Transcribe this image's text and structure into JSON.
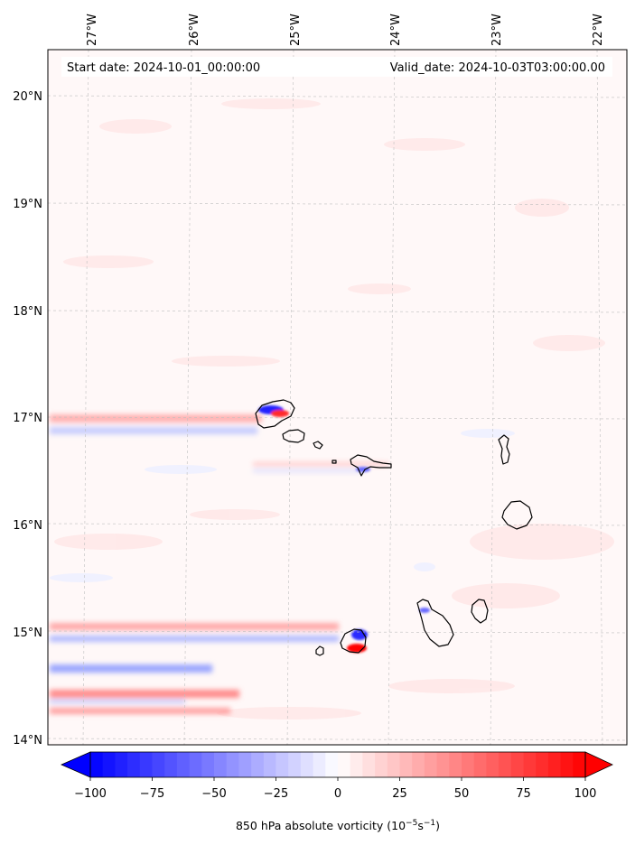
{
  "map": {
    "start_date": "Start date: 2024-10-01_00:00:00",
    "valid_date": "Valid_date: 2024-10-03T03:00:00.00",
    "lon_labels": [
      "27°W",
      "26°W",
      "25°W",
      "24°W",
      "23°W",
      "22°W"
    ],
    "lat_labels": [
      "20°N",
      "19°N",
      "18°N",
      "17°N",
      "16°N",
      "15°N",
      "14°N"
    ],
    "lon_values": [
      -27,
      -26,
      -25,
      -24,
      -23,
      -22
    ],
    "lat_values": [
      20,
      19,
      18,
      17,
      16,
      15,
      14
    ],
    "extent": {
      "lon_min": -27.4,
      "lon_max": -21.8,
      "lat_min": 13.95,
      "lat_max": 20.4
    },
    "gridlines": true,
    "islands": [
      "Santo Antão",
      "São Vicente",
      "Santa Luzia",
      "São Nicolau",
      "Sal",
      "Boa Vista",
      "Santiago",
      "Maio",
      "Fogo",
      "Brava"
    ]
  },
  "colorbar": {
    "label_main": "850 hPa absolute vorticity (10",
    "label_exp1": "−5",
    "label_mid": "s",
    "label_exp2": "−1",
    "label_end": ")",
    "tick_labels": [
      "−100",
      "−75",
      "−50",
      "−25",
      "0",
      "25",
      "50",
      "75",
      "100"
    ],
    "tick_values": [
      -100,
      -75,
      -50,
      -25,
      0,
      25,
      50,
      75,
      100
    ],
    "min": -100,
    "max": 100,
    "extend": "both",
    "cmap": "bwr"
  },
  "colors": {
    "negative": "#0000ff",
    "zero": "#ffffff",
    "positive": "#ff0000"
  }
}
